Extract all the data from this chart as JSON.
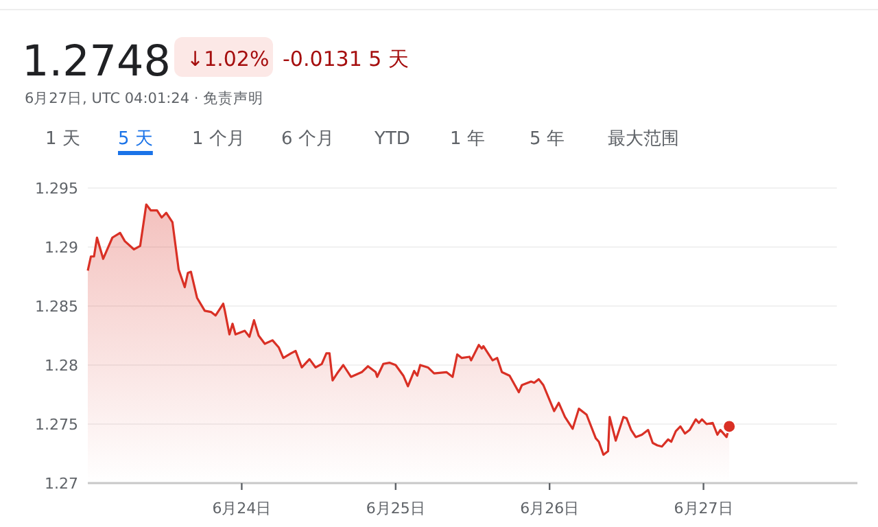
{
  "chart_data": {
    "type": "area",
    "title": "1.2748",
    "annotations": [
      "↓1.02%",
      "-0.0131 5 天",
      "6月27日, UTC 04:01:24 · 免责声明",
      "1 天",
      "5 天",
      "1 个月",
      "6 个月",
      "YTD",
      "1 年",
      "5 年",
      "最大范围"
    ],
    "color": "#d93025",
    "x": [
      "--06-23T00:00",
      "--06-23T00:29",
      "--06-23T00:58",
      "--06-23T01:26",
      "--06-23T02:24",
      "--06-23T03:07",
      "--06-23T03:50",
      "--06-23T05:02",
      "--06-23T05:46",
      "--06-23T07:12",
      "--06-23T08:10",
      "--06-23T09:07",
      "--06-23T09:50",
      "--06-23T10:48",
      "--06-23T11:31",
      "--06-23T12:14",
      "--06-23T13:12",
      "--06-23T14:10",
      "--06-23T15:07",
      "--06-23T15:36",
      "--06-23T16:05",
      "--06-23T17:02",
      "--06-23T18:14",
      "--06-23T19:12",
      "--06-23T19:55",
      "--06-23T21:07",
      "--06-23T21:22",
      "--06-23T22:05",
      "--06-23T22:34",
      "--06-23T23:02",
      "--06-24T00:29",
      "--06-24T01:12",
      "--06-24T01:55",
      "--06-24T02:38",
      "--06-24T03:36",
      "--06-24T04:48",
      "--06-24T05:46",
      "--06-24T06:29",
      "--06-24T07:41",
      "--06-24T08:24",
      "--06-24T09:22",
      "--06-24T10:34",
      "--06-24T11:31",
      "--06-24T12:29",
      "--06-24T13:12",
      "--06-24T13:41",
      "--06-24T14:10",
      "--06-24T14:53",
      "--06-24T15:50",
      "--06-24T17:02",
      "--06-24T18:43",
      "--06-24T19:41",
      "--06-24T20:53",
      "--06-24T21:07",
      "--06-24T22:05",
      "--06-24T23:02",
      "--06-25T00:00",
      "--06-25T01:12",
      "--06-25T01:55",
      "--06-25T02:53",
      "--06-25T03:22",
      "--06-25T03:50",
      "--06-25T05:02",
      "--06-25T06:00",
      "--06-25T07:55",
      "--06-25T08:53",
      "--06-25T09:36",
      "--06-25T10:19",
      "--06-25T11:31",
      "--06-25T11:46",
      "--06-25T12:58",
      "--06-25T13:26",
      "--06-25T13:41",
      "--06-25T15:07",
      "--06-25T15:50",
      "--06-25T16:34",
      "--06-25T17:46",
      "--06-25T19:12",
      "--06-25T19:41",
      "--06-25T21:07",
      "--06-25T21:36",
      "--06-25T22:19",
      "--06-25T23:02",
      "--06-26T00:43",
      "--06-26T01:26",
      "--06-26T02:24",
      "--06-26T03:36",
      "--06-26T04:34",
      "--06-26T05:46",
      "--06-26T07:12",
      "--06-26T07:41",
      "--06-26T08:24",
      "--06-26T09:07",
      "--06-26T09:22",
      "--06-26T10:19",
      "--06-26T11:31",
      "--06-26T12:00",
      "--06-26T12:43",
      "--06-26T13:26",
      "--06-26T14:24",
      "--06-26T15:22",
      "--06-26T16:05",
      "--06-26T16:48",
      "--06-26T17:31",
      "--06-26T18:29",
      "--06-26T18:58",
      "--06-26T19:41",
      "--06-26T20:24",
      "--06-26T21:07",
      "--06-26T21:50",
      "--06-26T22:48",
      "--06-26T23:17",
      "--06-26T23:46",
      "--06-27T00:29",
      "--06-27T01:26",
      "--06-27T02:10",
      "--06-27T02:38",
      "--06-27T03:36",
      "--06-27T04:01"
    ],
    "values": [
      1.288,
      1.2892,
      1.2892,
      1.2908,
      1.289,
      1.2899,
      1.2908,
      1.2912,
      1.2905,
      1.2898,
      1.2901,
      1.2936,
      1.2931,
      1.2931,
      1.2925,
      1.2929,
      1.2921,
      1.2881,
      1.2866,
      1.2878,
      1.2879,
      1.2857,
      1.2846,
      1.2845,
      1.2842,
      1.2852,
      1.2846,
      1.2826,
      1.2835,
      1.2826,
      1.2829,
      1.2824,
      1.2838,
      1.2825,
      1.2818,
      1.2821,
      1.2815,
      1.2806,
      1.281,
      1.2812,
      1.2798,
      1.2805,
      1.2798,
      1.2801,
      1.281,
      1.281,
      1.2787,
      1.2793,
      1.28,
      1.279,
      1.2794,
      1.2799,
      1.2794,
      1.279,
      1.2801,
      1.2802,
      1.28,
      1.2791,
      1.2782,
      1.2795,
      1.2791,
      1.28,
      1.2798,
      1.2793,
      1.2794,
      1.279,
      1.2809,
      1.2806,
      1.2807,
      1.2804,
      1.2817,
      1.2814,
      1.2816,
      1.2804,
      1.2806,
      1.2794,
      1.2791,
      1.2777,
      1.2783,
      1.2786,
      1.2785,
      1.2788,
      1.2783,
      1.2761,
      1.2768,
      1.2756,
      1.2746,
      1.2763,
      1.2758,
      1.2738,
      1.2735,
      1.2724,
      1.2727,
      1.2756,
      1.2736,
      1.2756,
      1.2755,
      1.2745,
      1.2739,
      1.2741,
      1.2745,
      1.2734,
      1.2732,
      1.2731,
      1.2737,
      1.2735,
      1.2744,
      1.2748,
      1.2742,
      1.2745,
      1.2754,
      1.2751,
      1.2754,
      1.275,
      1.2751,
      1.2741,
      1.2745,
      1.2739,
      1.2748
    ],
    "xlim": [
      "--06-23",
      "--06-28"
    ],
    "ylim": [
      1.27,
      1.295
    ],
    "xticks": [
      {
        "value": "--06-24",
        "label": "6月24日"
      },
      {
        "value": "--06-25",
        "label": "6月25日"
      },
      {
        "value": "--06-26",
        "label": "6月26日"
      },
      {
        "value": "--06-27",
        "label": "6月27日"
      }
    ],
    "yticks": [
      1.27,
      1.275,
      1.28,
      1.285,
      1.29,
      1.295
    ],
    "grid": "y"
  }
}
